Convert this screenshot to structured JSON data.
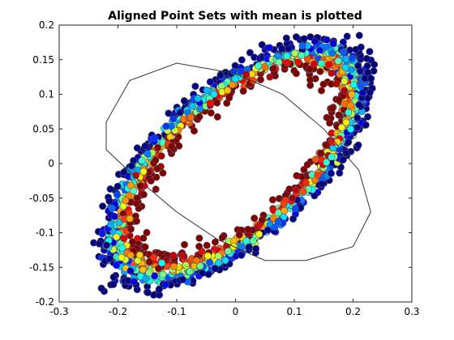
{
  "chart_data": {
    "type": "scatter",
    "title": "Aligned Point Sets with mean is plotted",
    "xlabel": "",
    "ylabel": "",
    "xlim": [
      -0.3,
      0.3
    ],
    "ylim": [
      -0.2,
      0.2
    ],
    "xticks": [
      "-0.3",
      "-0.2",
      "-0.1",
      "0",
      "0.1",
      "0.2",
      "0.3"
    ],
    "yticks": [
      "-0.2",
      "-0.15",
      "-0.1",
      "-0.05",
      "0",
      "0.05",
      "0.1",
      "0.15",
      "0.2"
    ],
    "grid": false,
    "box": true,
    "colormap": "jet",
    "marker": "filled-circle",
    "series": [
      {
        "values": "ring of aligned points, colored by point index",
        "shape": "tilted ellipse ring",
        "center": [
          0.0,
          0.0
        ],
        "extent_x": [
          -0.24,
          0.245
        ],
        "extent_y": [
          -0.185,
          0.18
        ]
      },
      {
        "values": "mean shape",
        "line_color": "#333333",
        "x": [
          -0.22,
          -0.18,
          -0.1,
          0.0,
          0.08,
          0.15,
          0.21,
          0.23,
          0.2,
          0.12,
          0.05,
          -0.03,
          -0.1,
          -0.17,
          -0.22,
          -0.22
        ],
        "y": [
          0.06,
          0.12,
          0.145,
          0.13,
          0.1,
          0.05,
          -0.01,
          -0.07,
          -0.12,
          -0.14,
          -0.14,
          -0.11,
          -0.07,
          -0.02,
          0.02,
          0.06
        ]
      }
    ]
  }
}
